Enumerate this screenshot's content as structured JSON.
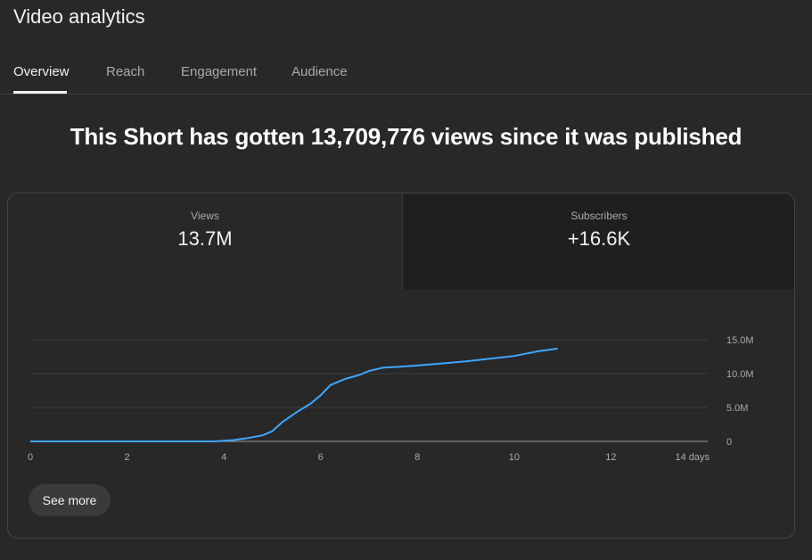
{
  "header": {
    "title": "Video analytics"
  },
  "tabs": [
    {
      "label": "Overview"
    },
    {
      "label": "Reach"
    },
    {
      "label": "Engagement"
    },
    {
      "label": "Audience"
    }
  ],
  "headline": "This Short has gotten 13,709,776 views since it was published",
  "metrics": {
    "views": {
      "label": "Views",
      "value": "13.7M"
    },
    "subscribers": {
      "label": "Subscribers",
      "value": "+16.6K"
    }
  },
  "see_more_label": "See more",
  "colors": {
    "line": "#3ea6ff",
    "background": "#282828"
  },
  "chart_data": {
    "type": "line",
    "x_ticks": [
      "0",
      "2",
      "4",
      "6",
      "8",
      "10",
      "12",
      "14 days"
    ],
    "y_ticks": [
      "0",
      "5.0M",
      "10.0M",
      "15.0M"
    ],
    "xlim": [
      0,
      14
    ],
    "ylim": [
      0,
      15
    ],
    "grid": true,
    "series": [
      {
        "x": [
          0,
          3.8,
          4.2,
          4.5,
          4.8,
          5.0,
          5.2,
          5.5,
          5.8,
          6.0,
          6.2,
          6.5,
          6.8,
          7.0,
          7.3,
          7.6,
          8.0,
          8.5,
          9.0,
          9.5,
          10.0,
          10.5,
          10.9
        ],
        "y": [
          0,
          0,
          0.2,
          0.5,
          0.9,
          1.5,
          2.8,
          4.3,
          5.6,
          6.8,
          8.3,
          9.2,
          9.8,
          10.4,
          10.9,
          11.0,
          11.2,
          11.5,
          11.8,
          12.2,
          12.6,
          13.3,
          13.7
        ]
      }
    ]
  }
}
